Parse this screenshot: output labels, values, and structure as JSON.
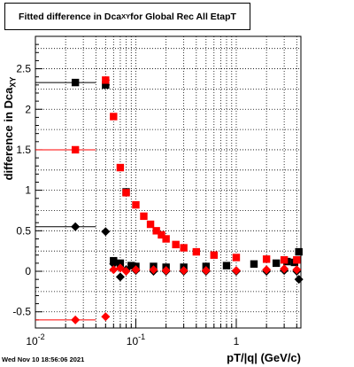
{
  "title": {
    "main": "Fitted difference in Dca",
    "sub": "XY",
    "suffix": " for Global Rec All EtapT"
  },
  "ylabel": {
    "main": "difference in Dca",
    "sub": "XY"
  },
  "xlabel": "pT/|q| (GeV/c)",
  "timestamp": "Wed Nov 10 18:56:06 2021",
  "colors": {
    "red": "#ff0000",
    "black": "#000000"
  },
  "chart_data": {
    "type": "scatter",
    "title": "Fitted difference in Dca_XY for Global Rec All EtapT",
    "xlabel": "pT/|q| (GeV/c)",
    "ylabel": "difference in Dca_XY",
    "x_scale": "log",
    "xlim": [
      0.01,
      4.4
    ],
    "ylim": [
      -0.7,
      2.9
    ],
    "grid": true,
    "x_ticks": [
      {
        "v": 0.01,
        "label": "10",
        "exp": "-2"
      },
      {
        "v": 0.1,
        "label": "10",
        "exp": "-1"
      },
      {
        "v": 1,
        "label": "1",
        "exp": ""
      }
    ],
    "y_ticks": [
      {
        "v": -0.5,
        "label": "-0.5"
      },
      {
        "v": 0,
        "label": "0"
      },
      {
        "v": 0.5,
        "label": "0.5"
      },
      {
        "v": 1,
        "label": "1"
      },
      {
        "v": 1.5,
        "label": "1.5"
      },
      {
        "v": 2,
        "label": "2"
      },
      {
        "v": 2.5,
        "label": "2.5"
      }
    ],
    "series": [
      {
        "color": "#000000",
        "marker": "square",
        "points": [
          [
            0.025,
            2.33
          ],
          [
            0.05,
            2.3
          ],
          [
            0.06,
            0.13
          ],
          [
            0.07,
            0.1
          ],
          [
            0.08,
            0.98
          ],
          [
            0.09,
            0.07
          ],
          [
            0.1,
            0.06
          ],
          [
            0.15,
            0.06
          ],
          [
            0.2,
            0.05
          ],
          [
            0.3,
            0.05
          ],
          [
            0.5,
            0.06
          ],
          [
            0.8,
            0.07
          ],
          [
            1.5,
            0.09
          ],
          [
            2.5,
            0.1
          ],
          [
            3.2,
            0.12
          ],
          [
            3.8,
            0.11
          ],
          [
            4.2,
            0.24
          ]
        ],
        "xerr": [
          [
            0.01,
            0.04
          ],
          [
            0.048,
            0.055
          ]
        ]
      },
      {
        "color": "#ff0000",
        "marker": "square",
        "points": [
          [
            0.025,
            1.5
          ],
          [
            0.05,
            2.36
          ],
          [
            0.06,
            1.91
          ],
          [
            0.07,
            1.28
          ],
          [
            0.08,
            0.97
          ],
          [
            0.1,
            0.82
          ],
          [
            0.12,
            0.68
          ],
          [
            0.14,
            0.58
          ],
          [
            0.16,
            0.5
          ],
          [
            0.18,
            0.45
          ],
          [
            0.2,
            0.4
          ],
          [
            0.25,
            0.33
          ],
          [
            0.3,
            0.29
          ],
          [
            0.4,
            0.24
          ],
          [
            0.6,
            0.2
          ],
          [
            1,
            0.17
          ],
          [
            2,
            0.15
          ],
          [
            3,
            0.14
          ],
          [
            4,
            0.14
          ]
        ],
        "xerr": [
          [
            0.01,
            0.04
          ],
          [
            0.048,
            0.055
          ]
        ]
      },
      {
        "color": "#000000",
        "marker": "diamond",
        "points": [
          [
            0.025,
            0.55
          ],
          [
            0.05,
            0.49
          ],
          [
            0.06,
            0.09
          ],
          [
            0.07,
            -0.07
          ],
          [
            0.08,
            0.02
          ],
          [
            0.1,
            0.01
          ],
          [
            0.15,
            0.0
          ],
          [
            0.2,
            0.0
          ],
          [
            0.3,
            0.0
          ],
          [
            0.5,
            0.0
          ],
          [
            1,
            0.0
          ],
          [
            2,
            0.0
          ],
          [
            3,
            0.01
          ],
          [
            4,
            0.0
          ],
          [
            4.2,
            -0.1
          ]
        ],
        "xerr": [
          [
            0.01,
            0.04
          ],
          [
            0.048,
            0.055
          ]
        ]
      },
      {
        "color": "#ff0000",
        "marker": "diamond",
        "points": [
          [
            0.025,
            -0.6
          ],
          [
            0.05,
            -0.56
          ],
          [
            0.06,
            0.02
          ],
          [
            0.07,
            0.04
          ],
          [
            0.08,
            0.0
          ],
          [
            0.1,
            0.02
          ],
          [
            0.15,
            0.02
          ],
          [
            0.2,
            0.01
          ],
          [
            0.3,
            0.01
          ],
          [
            0.5,
            0.01
          ],
          [
            1,
            0.01
          ],
          [
            2,
            0.02
          ],
          [
            3,
            0.03
          ],
          [
            4,
            0.02
          ]
        ],
        "xerr": [
          [
            0.01,
            0.04
          ],
          [
            0.048,
            0.055
          ]
        ]
      }
    ]
  }
}
